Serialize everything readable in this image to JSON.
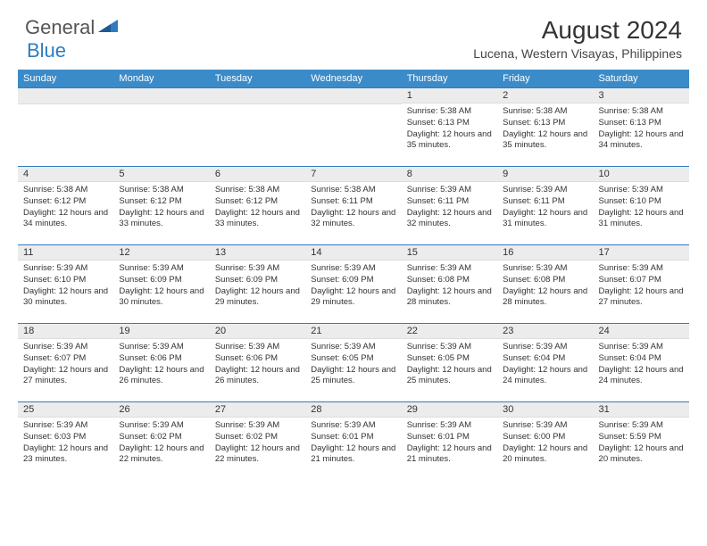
{
  "logo": {
    "text1": "General",
    "text2": "Blue"
  },
  "title": "August 2024",
  "location": "Lucena, Western Visayas, Philippines",
  "colors": {
    "header_bg": "#3b8bc9",
    "header_text": "#ffffff",
    "border": "#2e7cc0",
    "daynum_bg": "#ececec",
    "text": "#333333",
    "logo_gray": "#555555",
    "logo_blue": "#2e7cc0"
  },
  "weekdays": [
    "Sunday",
    "Monday",
    "Tuesday",
    "Wednesday",
    "Thursday",
    "Friday",
    "Saturday"
  ],
  "weeks": [
    [
      null,
      null,
      null,
      null,
      {
        "n": "1",
        "sr": "5:38 AM",
        "ss": "6:13 PM",
        "dl": "12 hours and 35 minutes."
      },
      {
        "n": "2",
        "sr": "5:38 AM",
        "ss": "6:13 PM",
        "dl": "12 hours and 35 minutes."
      },
      {
        "n": "3",
        "sr": "5:38 AM",
        "ss": "6:13 PM",
        "dl": "12 hours and 34 minutes."
      }
    ],
    [
      {
        "n": "4",
        "sr": "5:38 AM",
        "ss": "6:12 PM",
        "dl": "12 hours and 34 minutes."
      },
      {
        "n": "5",
        "sr": "5:38 AM",
        "ss": "6:12 PM",
        "dl": "12 hours and 33 minutes."
      },
      {
        "n": "6",
        "sr": "5:38 AM",
        "ss": "6:12 PM",
        "dl": "12 hours and 33 minutes."
      },
      {
        "n": "7",
        "sr": "5:38 AM",
        "ss": "6:11 PM",
        "dl": "12 hours and 32 minutes."
      },
      {
        "n": "8",
        "sr": "5:39 AM",
        "ss": "6:11 PM",
        "dl": "12 hours and 32 minutes."
      },
      {
        "n": "9",
        "sr": "5:39 AM",
        "ss": "6:11 PM",
        "dl": "12 hours and 31 minutes."
      },
      {
        "n": "10",
        "sr": "5:39 AM",
        "ss": "6:10 PM",
        "dl": "12 hours and 31 minutes."
      }
    ],
    [
      {
        "n": "11",
        "sr": "5:39 AM",
        "ss": "6:10 PM",
        "dl": "12 hours and 30 minutes."
      },
      {
        "n": "12",
        "sr": "5:39 AM",
        "ss": "6:09 PM",
        "dl": "12 hours and 30 minutes."
      },
      {
        "n": "13",
        "sr": "5:39 AM",
        "ss": "6:09 PM",
        "dl": "12 hours and 29 minutes."
      },
      {
        "n": "14",
        "sr": "5:39 AM",
        "ss": "6:09 PM",
        "dl": "12 hours and 29 minutes."
      },
      {
        "n": "15",
        "sr": "5:39 AM",
        "ss": "6:08 PM",
        "dl": "12 hours and 28 minutes."
      },
      {
        "n": "16",
        "sr": "5:39 AM",
        "ss": "6:08 PM",
        "dl": "12 hours and 28 minutes."
      },
      {
        "n": "17",
        "sr": "5:39 AM",
        "ss": "6:07 PM",
        "dl": "12 hours and 27 minutes."
      }
    ],
    [
      {
        "n": "18",
        "sr": "5:39 AM",
        "ss": "6:07 PM",
        "dl": "12 hours and 27 minutes."
      },
      {
        "n": "19",
        "sr": "5:39 AM",
        "ss": "6:06 PM",
        "dl": "12 hours and 26 minutes."
      },
      {
        "n": "20",
        "sr": "5:39 AM",
        "ss": "6:06 PM",
        "dl": "12 hours and 26 minutes."
      },
      {
        "n": "21",
        "sr": "5:39 AM",
        "ss": "6:05 PM",
        "dl": "12 hours and 25 minutes."
      },
      {
        "n": "22",
        "sr": "5:39 AM",
        "ss": "6:05 PM",
        "dl": "12 hours and 25 minutes."
      },
      {
        "n": "23",
        "sr": "5:39 AM",
        "ss": "6:04 PM",
        "dl": "12 hours and 24 minutes."
      },
      {
        "n": "24",
        "sr": "5:39 AM",
        "ss": "6:04 PM",
        "dl": "12 hours and 24 minutes."
      }
    ],
    [
      {
        "n": "25",
        "sr": "5:39 AM",
        "ss": "6:03 PM",
        "dl": "12 hours and 23 minutes."
      },
      {
        "n": "26",
        "sr": "5:39 AM",
        "ss": "6:02 PM",
        "dl": "12 hours and 22 minutes."
      },
      {
        "n": "27",
        "sr": "5:39 AM",
        "ss": "6:02 PM",
        "dl": "12 hours and 22 minutes."
      },
      {
        "n": "28",
        "sr": "5:39 AM",
        "ss": "6:01 PM",
        "dl": "12 hours and 21 minutes."
      },
      {
        "n": "29",
        "sr": "5:39 AM",
        "ss": "6:01 PM",
        "dl": "12 hours and 21 minutes."
      },
      {
        "n": "30",
        "sr": "5:39 AM",
        "ss": "6:00 PM",
        "dl": "12 hours and 20 minutes."
      },
      {
        "n": "31",
        "sr": "5:39 AM",
        "ss": "5:59 PM",
        "dl": "12 hours and 20 minutes."
      }
    ]
  ],
  "labels": {
    "sunrise": "Sunrise:",
    "sunset": "Sunset:",
    "daylight": "Daylight:"
  }
}
